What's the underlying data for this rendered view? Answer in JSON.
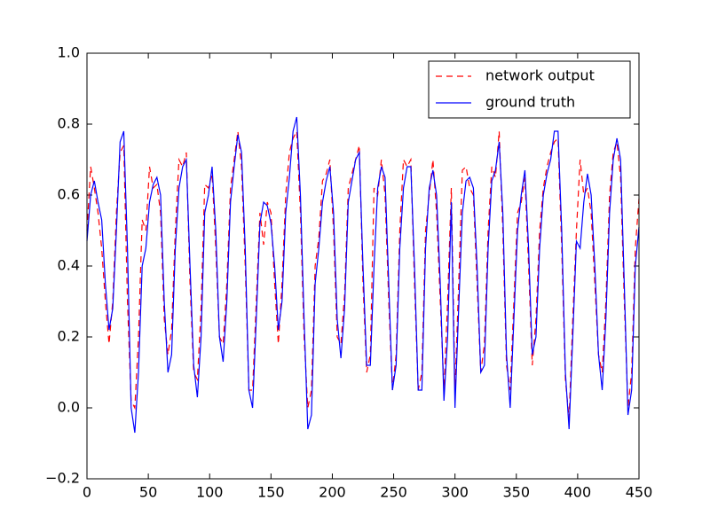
{
  "chart_data": {
    "type": "line",
    "x": [
      0,
      3,
      6,
      9,
      12,
      15,
      18,
      21,
      24,
      27,
      30,
      33,
      36,
      39,
      42,
      45,
      48,
      51,
      54,
      57,
      60,
      63,
      66,
      69,
      72,
      75,
      78,
      81,
      84,
      87,
      90,
      93,
      96,
      99,
      102,
      105,
      108,
      111,
      114,
      117,
      120,
      123,
      126,
      129,
      132,
      135,
      138,
      141,
      144,
      147,
      150,
      153,
      156,
      159,
      162,
      165,
      168,
      171,
      174,
      177,
      180,
      183,
      186,
      189,
      192,
      195,
      198,
      201,
      204,
      207,
      210,
      213,
      216,
      219,
      222,
      225,
      228,
      231,
      234,
      237,
      240,
      243,
      246,
      249,
      252,
      255,
      258,
      261,
      264,
      267,
      270,
      273,
      276,
      279,
      282,
      285,
      288,
      291,
      294,
      297,
      300,
      303,
      306,
      309,
      312,
      315,
      318,
      321,
      324,
      327,
      330,
      333,
      336,
      339,
      342,
      345,
      348,
      351,
      354,
      357,
      360,
      363,
      366,
      369,
      372,
      375,
      378,
      381,
      384,
      387,
      390,
      393,
      396,
      399,
      402,
      405,
      408,
      411,
      414,
      417,
      420,
      423,
      426,
      429,
      432,
      435,
      438,
      441,
      444,
      447,
      450
    ],
    "series": [
      {
        "name": "network output",
        "color": "#ff0000",
        "linestyle": "dashed",
        "values": [
          0.5,
          0.68,
          0.62,
          0.55,
          0.45,
          0.3,
          0.18,
          0.3,
          0.55,
          0.72,
          0.74,
          0.3,
          0.02,
          0.0,
          0.2,
          0.53,
          0.5,
          0.68,
          0.62,
          0.63,
          0.55,
          0.25,
          0.15,
          0.22,
          0.5,
          0.7,
          0.68,
          0.72,
          0.35,
          0.1,
          0.08,
          0.28,
          0.63,
          0.62,
          0.66,
          0.45,
          0.2,
          0.18,
          0.35,
          0.62,
          0.7,
          0.78,
          0.68,
          0.4,
          0.05,
          0.05,
          0.3,
          0.55,
          0.46,
          0.58,
          0.55,
          0.35,
          0.18,
          0.35,
          0.6,
          0.72,
          0.76,
          0.78,
          0.55,
          0.2,
          0.0,
          0.05,
          0.4,
          0.48,
          0.64,
          0.66,
          0.7,
          0.5,
          0.2,
          0.18,
          0.32,
          0.62,
          0.66,
          0.7,
          0.74,
          0.35,
          0.1,
          0.15,
          0.62,
          0.6,
          0.7,
          0.6,
          0.3,
          0.05,
          0.15,
          0.5,
          0.7,
          0.68,
          0.7,
          0.35,
          0.05,
          0.1,
          0.5,
          0.6,
          0.7,
          0.55,
          0.3,
          0.05,
          0.3,
          0.62,
          0.05,
          0.35,
          0.67,
          0.68,
          0.62,
          0.6,
          0.35,
          0.1,
          0.18,
          0.5,
          0.68,
          0.65,
          0.78,
          0.5,
          0.12,
          0.05,
          0.3,
          0.55,
          0.58,
          0.65,
          0.4,
          0.12,
          0.25,
          0.5,
          0.62,
          0.68,
          0.72,
          0.75,
          0.76,
          0.45,
          0.08,
          -0.03,
          0.25,
          0.5,
          0.7,
          0.6,
          0.62,
          0.55,
          0.35,
          0.15,
          0.1,
          0.3,
          0.6,
          0.72,
          0.75,
          0.65,
          0.3,
          0.0,
          0.1,
          0.45,
          0.59
        ]
      },
      {
        "name": "ground truth",
        "color": "#0000ff",
        "linestyle": "solid",
        "values": [
          0.47,
          0.6,
          0.64,
          0.58,
          0.53,
          0.35,
          0.22,
          0.28,
          0.5,
          0.75,
          0.78,
          0.45,
          0.0,
          -0.07,
          0.1,
          0.4,
          0.45,
          0.58,
          0.63,
          0.65,
          0.6,
          0.3,
          0.1,
          0.15,
          0.45,
          0.62,
          0.68,
          0.7,
          0.4,
          0.12,
          0.03,
          0.2,
          0.55,
          0.6,
          0.68,
          0.5,
          0.2,
          0.13,
          0.3,
          0.58,
          0.68,
          0.77,
          0.72,
          0.45,
          0.05,
          0.0,
          0.25,
          0.52,
          0.58,
          0.57,
          0.52,
          0.4,
          0.22,
          0.3,
          0.55,
          0.65,
          0.78,
          0.82,
          0.6,
          0.25,
          -0.06,
          -0.02,
          0.35,
          0.45,
          0.58,
          0.64,
          0.68,
          0.55,
          0.25,
          0.14,
          0.28,
          0.58,
          0.64,
          0.7,
          0.72,
          0.4,
          0.12,
          0.12,
          0.4,
          0.62,
          0.68,
          0.65,
          0.35,
          0.05,
          0.12,
          0.45,
          0.62,
          0.68,
          0.68,
          0.4,
          0.05,
          0.05,
          0.45,
          0.62,
          0.67,
          0.6,
          0.35,
          0.02,
          0.2,
          0.58,
          0.0,
          0.28,
          0.55,
          0.64,
          0.65,
          0.62,
          0.4,
          0.1,
          0.12,
          0.45,
          0.64,
          0.67,
          0.75,
          0.55,
          0.15,
          0.0,
          0.25,
          0.5,
          0.6,
          0.67,
          0.45,
          0.15,
          0.2,
          0.45,
          0.6,
          0.66,
          0.7,
          0.78,
          0.78,
          0.5,
          0.1,
          -0.06,
          0.2,
          0.47,
          0.45,
          0.58,
          0.66,
          0.6,
          0.4,
          0.15,
          0.05,
          0.25,
          0.55,
          0.7,
          0.76,
          0.7,
          0.35,
          -0.02,
          0.05,
          0.4,
          0.51
        ]
      }
    ],
    "xlim": [
      0,
      450
    ],
    "xticks": [
      0,
      50,
      100,
      150,
      200,
      250,
      300,
      350,
      400,
      450
    ],
    "ylim": [
      -0.2,
      1.0
    ],
    "yticks": [
      {
        "value": -0.2,
        "label": "−0.2"
      },
      {
        "value": 0,
        "label": "0.0"
      },
      0.2,
      0.4,
      0.6,
      0.8,
      {
        "value": 1.0,
        "label": "1.0"
      }
    ],
    "legend": "upper right"
  }
}
